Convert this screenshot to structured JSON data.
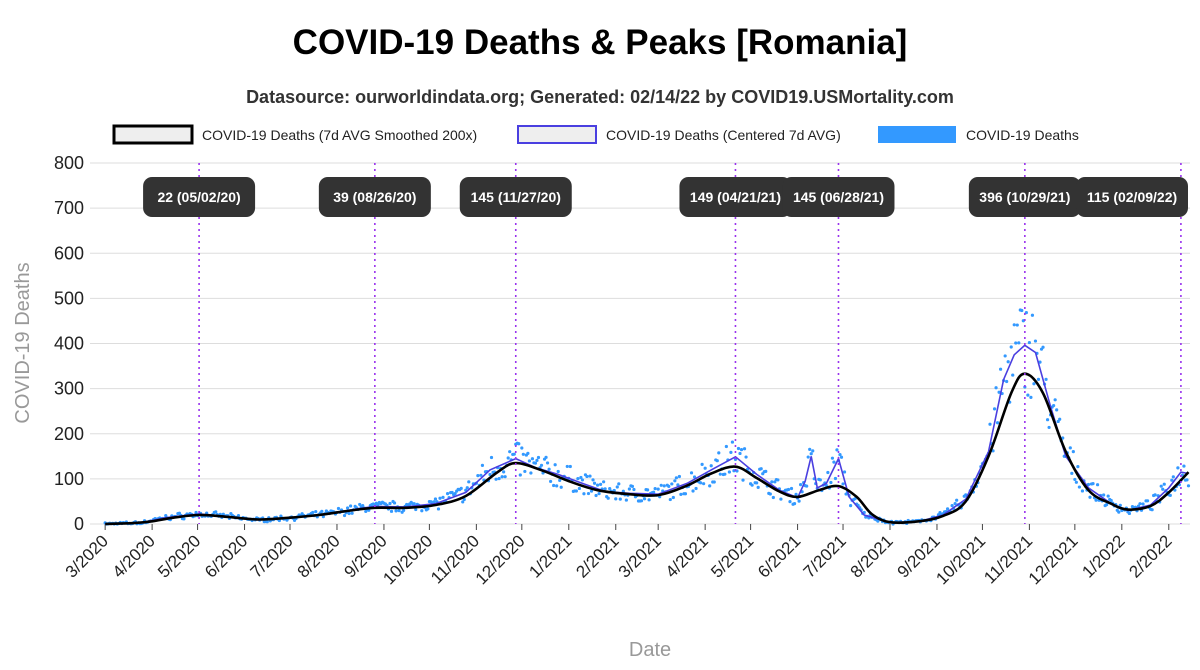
{
  "chart_data": {
    "type": "line",
    "title": "COVID-19 Deaths & Peaks [Romania]",
    "subtitle": "Datasource: ourworldindata.org; Generated: 02/14/22 by COVID19.USMortality.com",
    "xlabel": "Date",
    "ylabel": "COVID-19 Deaths",
    "ylim": [
      0,
      800
    ],
    "yticks": [
      0,
      100,
      200,
      300,
      400,
      500,
      600,
      700,
      800
    ],
    "xlim": [
      "2020-02-20",
      "2022-02-15"
    ],
    "x_ticks": [
      {
        "date": "2020-03-01",
        "label": "3/2020"
      },
      {
        "date": "2020-04-01",
        "label": "4/2020"
      },
      {
        "date": "2020-05-01",
        "label": "5/2020"
      },
      {
        "date": "2020-06-01",
        "label": "6/2020"
      },
      {
        "date": "2020-07-01",
        "label": "7/2020"
      },
      {
        "date": "2020-08-01",
        "label": "8/2020"
      },
      {
        "date": "2020-09-01",
        "label": "9/2020"
      },
      {
        "date": "2020-10-01",
        "label": "10/2020"
      },
      {
        "date": "2020-11-01",
        "label": "11/2020"
      },
      {
        "date": "2020-12-01",
        "label": "12/2020"
      },
      {
        "date": "2021-01-01",
        "label": "1/2021"
      },
      {
        "date": "2021-02-01",
        "label": "2/2021"
      },
      {
        "date": "2021-03-01",
        "label": "3/2021"
      },
      {
        "date": "2021-04-01",
        "label": "4/2021"
      },
      {
        "date": "2021-05-01",
        "label": "5/2021"
      },
      {
        "date": "2021-06-01",
        "label": "6/2021"
      },
      {
        "date": "2021-07-01",
        "label": "7/2021"
      },
      {
        "date": "2021-08-01",
        "label": "8/2021"
      },
      {
        "date": "2021-09-01",
        "label": "9/2021"
      },
      {
        "date": "2021-10-01",
        "label": "10/2021"
      },
      {
        "date": "2021-11-01",
        "label": "11/2021"
      },
      {
        "date": "2021-12-01",
        "label": "12/2021"
      },
      {
        "date": "2022-01-01",
        "label": "1/2022"
      },
      {
        "date": "2022-02-01",
        "label": "2/2022"
      }
    ],
    "grid": true,
    "legend": {
      "placement": "top",
      "entries": [
        {
          "label": "COVID-19 Deaths (7d AVG Smoothed 200x)",
          "style": "smoothed"
        },
        {
          "label": "COVID-19 Deaths (Centered 7d AVG)",
          "style": "avg"
        },
        {
          "label": "COVID-19 Deaths",
          "style": "raw"
        }
      ]
    },
    "colors": {
      "smoothed": "#000000",
      "avg": "#4a3fe0",
      "raw": "#3399ff",
      "peak_line": "#9933ee",
      "peak_label_bg": "#333333",
      "grid": "#dddddd"
    },
    "peaks": [
      {
        "date": "2020-05-02",
        "value": 22,
        "label": "22 (05/02/20)"
      },
      {
        "date": "2020-08-26",
        "value": 39,
        "label": "39 (08/26/20)"
      },
      {
        "date": "2020-11-27",
        "value": 145,
        "label": "145 (11/27/20)"
      },
      {
        "date": "2021-04-21",
        "value": 149,
        "label": "149 (04/21/21)"
      },
      {
        "date": "2021-06-28",
        "value": 145,
        "label": "145 (06/28/21)"
      },
      {
        "date": "2021-10-29",
        "value": 396,
        "label": "396 (10/29/21)"
      },
      {
        "date": "2022-02-09",
        "value": 115,
        "label": "115 (02/09/22)"
      }
    ],
    "series": [
      {
        "name": "COVID-19 Deaths (7d AVG Smoothed 200x)",
        "style": "smoothed",
        "points": [
          [
            "2020-03-01",
            0
          ],
          [
            "2020-03-20",
            2
          ],
          [
            "2020-04-01",
            6
          ],
          [
            "2020-04-15",
            14
          ],
          [
            "2020-05-02",
            20
          ],
          [
            "2020-05-20",
            16
          ],
          [
            "2020-06-10",
            10
          ],
          [
            "2020-07-01",
            14
          ],
          [
            "2020-07-20",
            20
          ],
          [
            "2020-08-10",
            30
          ],
          [
            "2020-08-26",
            36
          ],
          [
            "2020-09-15",
            36
          ],
          [
            "2020-10-05",
            42
          ],
          [
            "2020-10-25",
            62
          ],
          [
            "2020-11-15",
            115
          ],
          [
            "2020-11-27",
            135
          ],
          [
            "2020-12-15",
            118
          ],
          [
            "2021-01-01",
            95
          ],
          [
            "2021-01-20",
            75
          ],
          [
            "2021-02-10",
            66
          ],
          [
            "2021-03-01",
            64
          ],
          [
            "2021-03-20",
            85
          ],
          [
            "2021-04-05",
            112
          ],
          [
            "2021-04-21",
            127
          ],
          [
            "2021-05-05",
            102
          ],
          [
            "2021-05-20",
            72
          ],
          [
            "2021-06-01",
            60
          ],
          [
            "2021-06-15",
            75
          ],
          [
            "2021-06-28",
            84
          ],
          [
            "2021-07-10",
            60
          ],
          [
            "2021-07-20",
            22
          ],
          [
            "2021-08-01",
            4
          ],
          [
            "2021-08-20",
            6
          ],
          [
            "2021-09-05",
            18
          ],
          [
            "2021-09-20",
            50
          ],
          [
            "2021-10-05",
            150
          ],
          [
            "2021-10-20",
            290
          ],
          [
            "2021-10-29",
            333
          ],
          [
            "2021-11-10",
            290
          ],
          [
            "2021-11-25",
            160
          ],
          [
            "2021-12-10",
            75
          ],
          [
            "2021-12-25",
            45
          ],
          [
            "2022-01-05",
            32
          ],
          [
            "2022-01-20",
            40
          ],
          [
            "2022-02-01",
            70
          ],
          [
            "2022-02-14",
            115
          ]
        ]
      },
      {
        "name": "COVID-19 Deaths (Centered 7d AVG)",
        "style": "avg",
        "points": [
          [
            "2020-03-01",
            0
          ],
          [
            "2020-03-25",
            3
          ],
          [
            "2020-04-10",
            14
          ],
          [
            "2020-04-25",
            20
          ],
          [
            "2020-05-02",
            22
          ],
          [
            "2020-05-20",
            17
          ],
          [
            "2020-06-10",
            9
          ],
          [
            "2020-07-01",
            14
          ],
          [
            "2020-07-25",
            22
          ],
          [
            "2020-08-15",
            34
          ],
          [
            "2020-08-26",
            39
          ],
          [
            "2020-09-15",
            38
          ],
          [
            "2020-10-05",
            45
          ],
          [
            "2020-10-25",
            70
          ],
          [
            "2020-11-10",
            120
          ],
          [
            "2020-11-27",
            145
          ],
          [
            "2020-12-10",
            125
          ],
          [
            "2020-12-25",
            110
          ],
          [
            "2021-01-10",
            90
          ],
          [
            "2021-01-25",
            72
          ],
          [
            "2021-02-10",
            68
          ],
          [
            "2021-03-01",
            66
          ],
          [
            "2021-03-20",
            90
          ],
          [
            "2021-04-05",
            120
          ],
          [
            "2021-04-21",
            149
          ],
          [
            "2021-05-05",
            110
          ],
          [
            "2021-05-20",
            75
          ],
          [
            "2021-06-01",
            58
          ],
          [
            "2021-06-06",
            95
          ],
          [
            "2021-06-10",
            150
          ],
          [
            "2021-06-14",
            80
          ],
          [
            "2021-06-20",
            90
          ],
          [
            "2021-06-28",
            145
          ],
          [
            "2021-07-05",
            60
          ],
          [
            "2021-07-15",
            20
          ],
          [
            "2021-08-01",
            3
          ],
          [
            "2021-08-20",
            5
          ],
          [
            "2021-09-05",
            20
          ],
          [
            "2021-09-20",
            55
          ],
          [
            "2021-10-05",
            160
          ],
          [
            "2021-10-15",
            320
          ],
          [
            "2021-10-22",
            375
          ],
          [
            "2021-10-29",
            396
          ],
          [
            "2021-11-05",
            380
          ],
          [
            "2021-11-15",
            260
          ],
          [
            "2021-11-25",
            150
          ],
          [
            "2021-12-10",
            80
          ],
          [
            "2021-12-25",
            45
          ],
          [
            "2022-01-05",
            30
          ],
          [
            "2022-01-20",
            42
          ],
          [
            "2022-02-01",
            80
          ],
          [
            "2022-02-09",
            115
          ],
          [
            "2022-02-14",
            112
          ]
        ]
      }
    ]
  }
}
